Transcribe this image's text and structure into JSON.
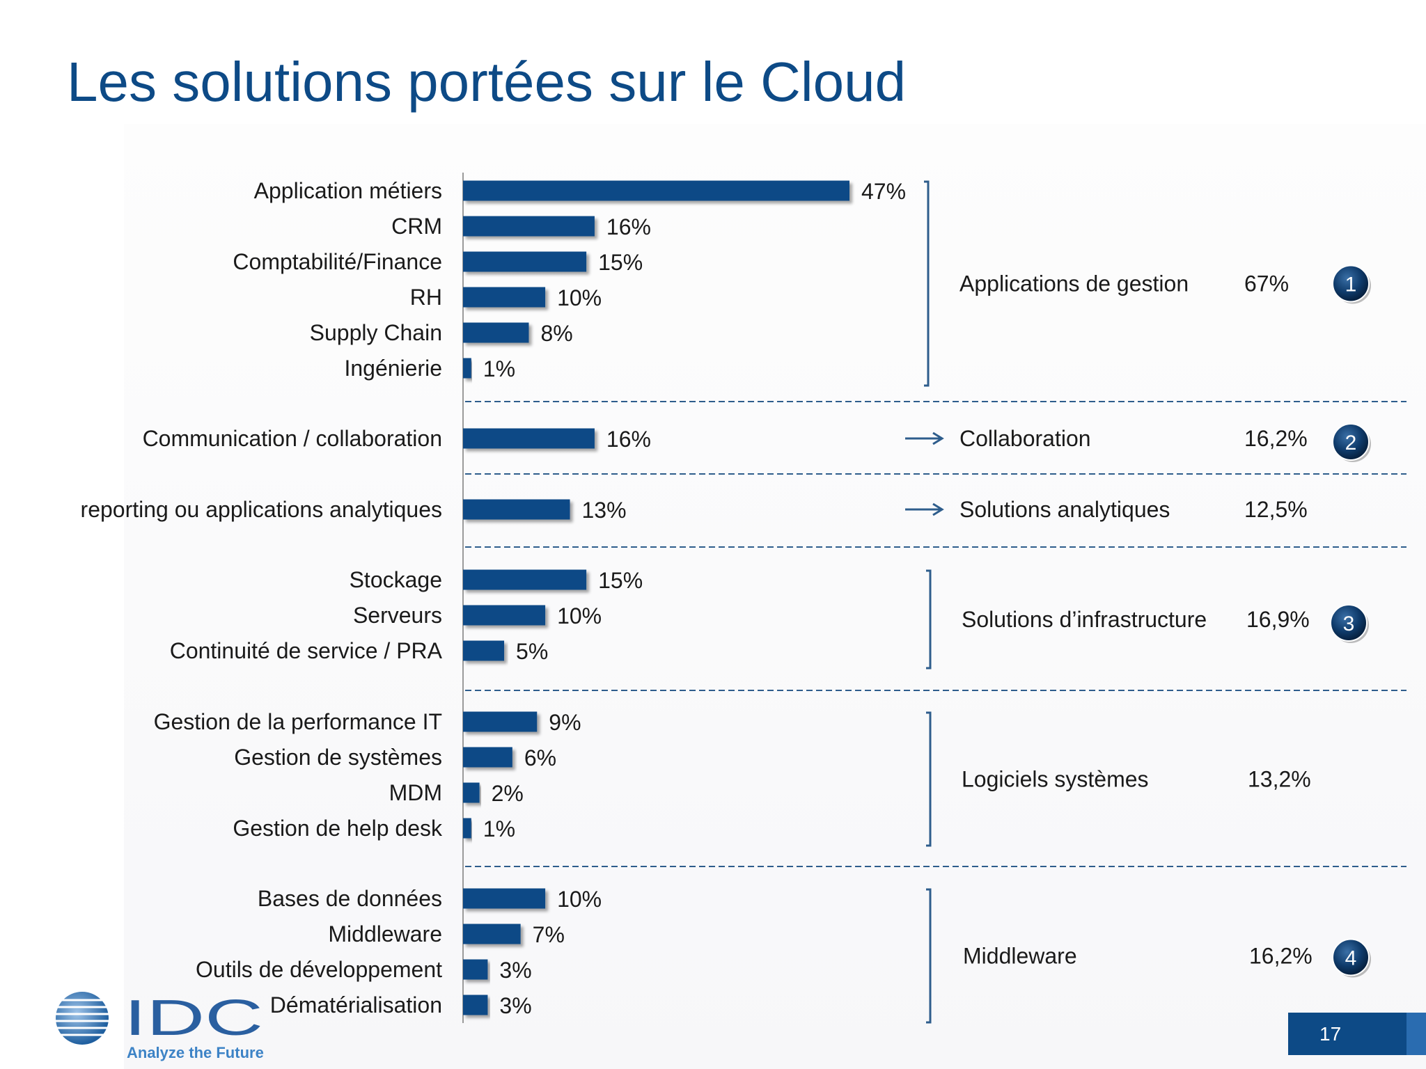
{
  "slide": {
    "title": "Les solutions portées sur le Cloud",
    "page_number": "17"
  },
  "logo": {
    "brand": "IDC",
    "tagline": "Analyze the Future"
  },
  "colors": {
    "bar": "#0d4a86",
    "title": "#0d4a86",
    "text": "#1a1a1a",
    "divider": "#2e5d8c",
    "badge": "#0f3b6b"
  },
  "chart_data": {
    "type": "bar",
    "orientation": "horizontal",
    "xlim": [
      0,
      47
    ],
    "categories": [
      "Application métiers",
      "CRM",
      "Comptabilité/Finance",
      "RH",
      "Supply Chain",
      "Ingénierie",
      "Communication / collaboration",
      "reporting ou applications analytiques",
      "Stockage",
      "Serveurs",
      "Continuité de service / PRA",
      "Gestion de la performance IT",
      "Gestion de systèmes",
      "MDM",
      "Gestion de help desk",
      "Bases de données",
      "Middleware",
      "Outils de développement",
      "Dématérialisation"
    ],
    "values": [
      47,
      16,
      15,
      10,
      8,
      1,
      16,
      13,
      15,
      10,
      5,
      9,
      6,
      2,
      1,
      10,
      7,
      3,
      3
    ],
    "value_labels": [
      "47%",
      "16%",
      "15%",
      "10%",
      "8%",
      "1%",
      "16%",
      "13%",
      "15%",
      "10%",
      "5%",
      "9%",
      "6%",
      "2%",
      "1%",
      "10%",
      "7%",
      "3%",
      "3%"
    ],
    "groups": [
      {
        "label": "Applications de gestion",
        "share": "67%",
        "badge": "1",
        "marker": "bracket",
        "first": 0,
        "last": 5
      },
      {
        "label": "Collaboration",
        "share": "16,2%",
        "badge": "2",
        "marker": "arrow",
        "first": 6,
        "last": 6
      },
      {
        "label": "Solutions analytiques",
        "share": "12,5%",
        "badge": "",
        "marker": "arrow",
        "first": 7,
        "last": 7
      },
      {
        "label": "Solutions d’infrastructure",
        "share": "16,9%",
        "badge": "3",
        "marker": "bracket",
        "first": 8,
        "last": 10
      },
      {
        "label": "Logiciels systèmes",
        "share": "13,2%",
        "badge": "",
        "marker": "bracket",
        "first": 11,
        "last": 14
      },
      {
        "label": "Middleware",
        "share": "16,2%",
        "badge": "4",
        "marker": "bracket",
        "first": 15,
        "last": 18
      }
    ]
  }
}
